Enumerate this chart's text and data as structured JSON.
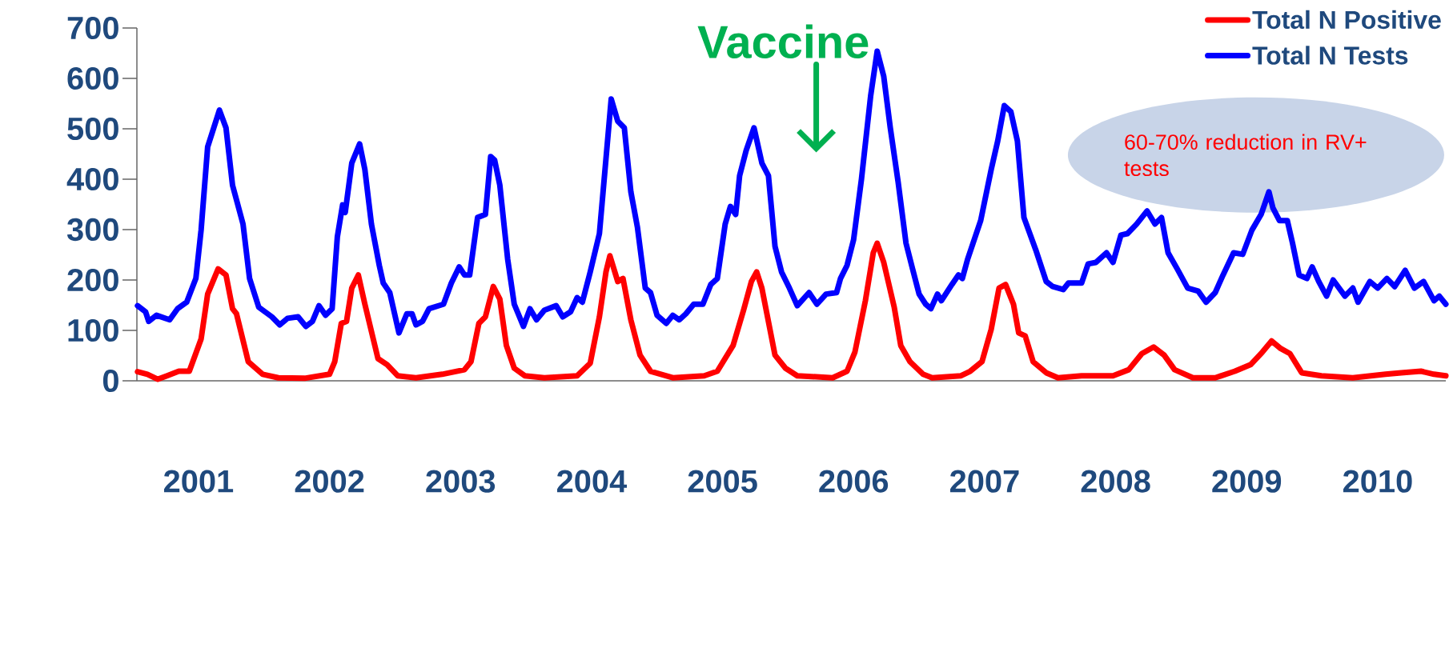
{
  "chart_data": {
    "type": "line",
    "xlim": [
      2000.53,
      2010.52
    ],
    "xticks": [
      2001,
      2002,
      2003,
      2004,
      2005,
      2006,
      2007,
      2008,
      2009,
      2010
    ],
    "ylim": [
      0,
      700
    ],
    "yticks": [
      0,
      100,
      200,
      300,
      400,
      500,
      600,
      700
    ],
    "legend": "top right",
    "marker": "none",
    "line_style": "solid",
    "series": [
      {
        "name": "Total N Positive",
        "color": "#ff0000",
        "x": [
          2000.535,
          2000.61,
          2000.69,
          2000.76,
          2000.85,
          2000.93,
          2001.02,
          2001.07,
          2001.15,
          2001.21,
          2001.26,
          2001.29,
          2001.38,
          2001.49,
          2001.61,
          2001.81,
          2002.0,
          2002.04,
          2002.09,
          2002.13,
          2002.17,
          2002.22,
          2002.27,
          2002.37,
          2002.44,
          2002.52,
          2002.66,
          2002.86,
          2003.03,
          2003.08,
          2003.14,
          2003.19,
          2003.25,
          2003.3,
          2003.35,
          2003.41,
          2003.49,
          2003.64,
          2003.89,
          2003.99,
          2004.06,
          2004.11,
          2004.14,
          2004.2,
          2004.24,
          2004.3,
          2004.37,
          2004.45,
          2004.62,
          2004.86,
          2004.96,
          2005.08,
          2005.16,
          2005.22,
          2005.26,
          2005.3,
          2005.4,
          2005.48,
          2005.57,
          2005.84,
          2005.95,
          2006.01,
          2006.09,
          2006.15,
          2006.18,
          2006.23,
          2006.31,
          2006.36,
          2006.43,
          2006.53,
          2006.6,
          2006.82,
          2006.89,
          2006.98,
          2007.05,
          2007.11,
          2007.16,
          2007.22,
          2007.26,
          2007.31,
          2007.37,
          2007.47,
          2007.56,
          2007.74,
          2007.98,
          2008.1,
          2008.2,
          2008.29,
          2008.37,
          2008.45,
          2008.59,
          2008.76,
          2008.91,
          2009.03,
          2009.12,
          2009.19,
          2009.26,
          2009.33,
          2009.42,
          2009.57,
          2009.81,
          2010.06,
          2010.18,
          2010.33,
          2010.43,
          2010.52
        ],
        "values": [
          18,
          13,
          3,
          10,
          19,
          19,
          83,
          172,
          222,
          210,
          143,
          133,
          38,
          13,
          6,
          5,
          13,
          38,
          114,
          118,
          184,
          210,
          152,
          44,
          32,
          10,
          6,
          13,
          22,
          38,
          114,
          127,
          187,
          162,
          70,
          25,
          10,
          6,
          10,
          35,
          127,
          216,
          248,
          197,
          203,
          121,
          51,
          19,
          6,
          10,
          19,
          70,
          140,
          197,
          216,
          184,
          51,
          25,
          10,
          6,
          19,
          57,
          159,
          254,
          273,
          235,
          146,
          70,
          38,
          13,
          6,
          10,
          19,
          38,
          102,
          184,
          191,
          152,
          95,
          89,
          38,
          16,
          6,
          10,
          10,
          22,
          54,
          67,
          51,
          22,
          6,
          6,
          19,
          32,
          57,
          79,
          64,
          54,
          16,
          10,
          6,
          13,
          16,
          19,
          13,
          10
        ]
      },
      {
        "name": "Total N Tests",
        "color": "#0000ff",
        "x": [
          2000.535,
          2000.596,
          2000.62,
          2000.68,
          2000.78,
          2000.84,
          2000.91,
          2000.98,
          2001.02,
          2001.07,
          2001.16,
          2001.21,
          2001.26,
          2001.34,
          2001.39,
          2001.46,
          2001.56,
          2001.62,
          2001.68,
          2001.76,
          2001.82,
          2001.87,
          2001.92,
          2001.97,
          2002.02,
          2002.06,
          2002.1,
          2002.12,
          2002.17,
          2002.23,
          2002.27,
          2002.32,
          2002.38,
          2002.41,
          2002.46,
          2002.53,
          2002.59,
          2002.63,
          2002.66,
          2002.71,
          2002.76,
          2002.87,
          2002.93,
          2002.99,
          2003.03,
          2003.07,
          2003.13,
          2003.19,
          2003.23,
          2003.26,
          2003.3,
          2003.36,
          2003.41,
          2003.48,
          2003.53,
          2003.58,
          2003.64,
          2003.73,
          2003.78,
          2003.84,
          2003.89,
          2003.93,
          2003.99,
          2004.06,
          2004.09,
          2004.15,
          2004.2,
          2004.25,
          2004.3,
          2004.35,
          2004.41,
          2004.45,
          2004.5,
          2004.57,
          2004.62,
          2004.67,
          2004.72,
          2004.78,
          2004.85,
          2004.91,
          2004.96,
          2005.02,
          2005.06,
          2005.1,
          2005.13,
          2005.18,
          2005.24,
          2005.3,
          2005.35,
          2005.4,
          2005.45,
          2005.51,
          2005.57,
          2005.66,
          2005.72,
          2005.79,
          2005.87,
          2005.9,
          2005.95,
          2006.0,
          2006.06,
          2006.13,
          2006.18,
          2006.23,
          2006.28,
          2006.34,
          2006.4,
          2006.45,
          2006.5,
          2006.55,
          2006.59,
          2006.64,
          2006.67,
          2006.75,
          2006.8,
          2006.83,
          2006.87,
          2006.97,
          2007.05,
          2007.1,
          2007.15,
          2007.2,
          2007.25,
          2007.3,
          2007.39,
          2007.47,
          2007.52,
          2007.6,
          2007.64,
          2007.74,
          2007.79,
          2007.85,
          2007.93,
          2007.98,
          2008.04,
          2008.09,
          2008.16,
          2008.24,
          2008.3,
          2008.35,
          2008.4,
          2008.47,
          2008.55,
          2008.63,
          2008.69,
          2008.76,
          2008.82,
          2008.9,
          2008.97,
          2009.04,
          2009.11,
          2009.17,
          2009.2,
          2009.25,
          2009.31,
          2009.35,
          2009.4,
          2009.46,
          2009.5,
          2009.55,
          2009.61,
          2009.66,
          2009.75,
          2009.81,
          2009.85,
          2009.94,
          2010.0,
          2010.07,
          2010.13,
          2010.21,
          2010.28,
          2010.35,
          2010.43,
          2010.47,
          2010.52
        ],
        "values": [
          149,
          137,
          118,
          130,
          121,
          143,
          156,
          203,
          299,
          464,
          537,
          502,
          388,
          311,
          203,
          146,
          127,
          111,
          124,
          127,
          108,
          118,
          149,
          130,
          143,
          286,
          349,
          334,
          432,
          470,
          419,
          311,
          229,
          194,
          175,
          95,
          133,
          133,
          111,
          118,
          143,
          152,
          194,
          226,
          210,
          210,
          324,
          330,
          445,
          438,
          388,
          241,
          152,
          108,
          143,
          121,
          140,
          149,
          127,
          137,
          165,
          156,
          216,
          292,
          381,
          559,
          515,
          502,
          375,
          305,
          184,
          175,
          130,
          114,
          130,
          121,
          133,
          152,
          152,
          191,
          203,
          311,
          346,
          330,
          407,
          457,
          502,
          432,
          407,
          267,
          216,
          184,
          149,
          175,
          152,
          172,
          175,
          203,
          229,
          280,
          400,
          565,
          654,
          604,
          502,
          394,
          273,
          222,
          172,
          152,
          143,
          172,
          159,
          191,
          210,
          203,
          241,
          318,
          419,
          476,
          546,
          534,
          476,
          324,
          260,
          197,
          187,
          181,
          194,
          194,
          232,
          235,
          254,
          235,
          289,
          292,
          311,
          337,
          311,
          324,
          254,
          222,
          184,
          178,
          156,
          175,
          210,
          254,
          251,
          299,
          330,
          375,
          343,
          318,
          318,
          273,
          210,
          203,
          226,
          197,
          168,
          200,
          168,
          184,
          156,
          197,
          184,
          203,
          187,
          219,
          184,
          197,
          159,
          168,
          152
        ]
      }
    ],
    "annotations": [
      "Vaccine",
      "60-70% reduction in RV+ tests"
    ]
  }
}
